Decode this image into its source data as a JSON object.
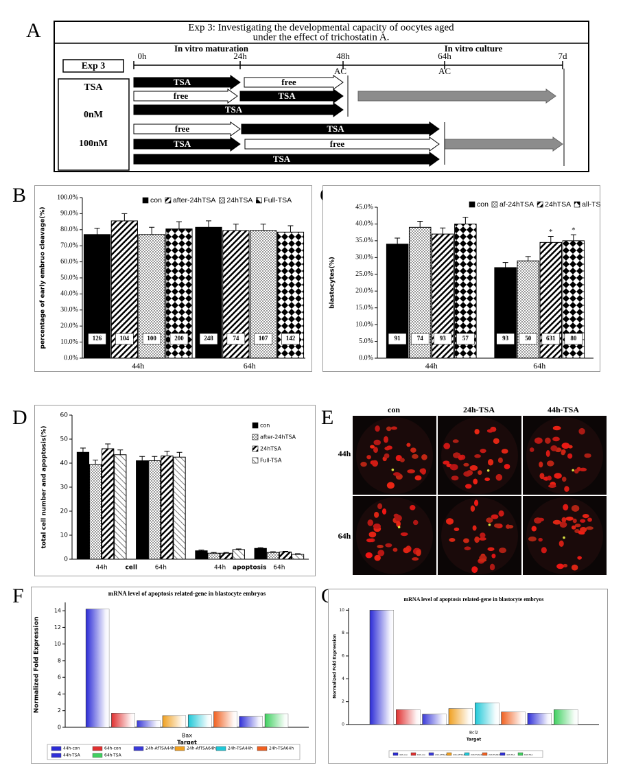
{
  "panel_labels": [
    "A",
    "B",
    "C",
    "D",
    "E",
    "F",
    "G"
  ],
  "diagram": {
    "title_lines": [
      "Exp 3: Investigating the developmental capacity of oocytes aged",
      "under the effect of trichostatin A."
    ],
    "exp_label": "Exp 3",
    "phases": [
      "In vitro maturation",
      "In vitro culture"
    ],
    "timepoints": [
      "0h",
      "24h",
      "48h",
      "64h",
      "7d"
    ],
    "markers": [
      "AC",
      "AC"
    ],
    "groups": [
      "TSA",
      "0nM",
      "100nM"
    ],
    "arrows": [
      {
        "label": "TSA",
        "style": "filled"
      },
      {
        "label": "free",
        "style": "open"
      },
      {
        "label": "free",
        "style": "open"
      },
      {
        "label": "TSA",
        "style": "filled"
      },
      {
        "label": "TSA",
        "style": "filled"
      },
      {
        "label": "free",
        "style": "open"
      },
      {
        "label": "TSA",
        "style": "filled"
      },
      {
        "label": "TSA",
        "style": "filled"
      },
      {
        "label": "free",
        "style": "open"
      },
      {
        "label": "TSA",
        "style": "filled"
      }
    ]
  },
  "images": {
    "columns": [
      "con",
      "24h-TSA",
      "44h-TSA"
    ],
    "rows": [
      "44h",
      "64h"
    ]
  },
  "chart_data": [
    {
      "type": "bar",
      "ylabel": "percentage of early embruo  cleavage(%)",
      "categories": [
        "44h",
        "64h"
      ],
      "ylim": [
        0,
        100
      ],
      "yticks": [
        {
          "value": 0,
          "label": "0.0%"
        },
        {
          "value": 10,
          "label": "10.0%"
        },
        {
          "value": 20,
          "label": "20.0%"
        },
        {
          "value": 30,
          "label": "30.0%"
        },
        {
          "value": 40,
          "label": "40.0%"
        },
        {
          "value": 50,
          "label": "50.0%"
        },
        {
          "value": 60,
          "label": "60.0%"
        },
        {
          "value": 70,
          "label": "70.0%"
        },
        {
          "value": 80,
          "label": "80.0%"
        },
        {
          "value": 90,
          "label": "90.0%"
        },
        {
          "value": 100,
          "label": "100.0%"
        }
      ],
      "legend": "top",
      "series": [
        {
          "name": "con",
          "color": "#000000",
          "pattern": "solid",
          "values": [
            77,
            81.5
          ],
          "errors": [
            4,
            4
          ],
          "sample_sizes": [
            126,
            248
          ]
        },
        {
          "name": "after-24hTSA",
          "color": "#000000",
          "pattern": "hatch",
          "values": [
            85.5,
            79.5
          ],
          "errors": [
            4.5,
            4
          ],
          "sample_sizes": [
            104,
            74
          ]
        },
        {
          "name": "24hTSA",
          "color": "#000000",
          "pattern": "dots",
          "values": [
            77,
            79.5
          ],
          "errors": [
            4.5,
            4
          ],
          "sample_sizes": [
            100,
            107
          ]
        },
        {
          "name": "Full-TSA",
          "color": "#000000",
          "pattern": "diamond",
          "values": [
            80.5,
            78.5
          ],
          "errors": [
            4.5,
            4
          ],
          "sample_sizes": [
            200,
            142
          ]
        }
      ]
    },
    {
      "type": "bar",
      "ylabel": "blastocytes(%)",
      "categories": [
        "44h",
        "64h"
      ],
      "ylim": [
        0,
        45
      ],
      "yticks": [
        {
          "value": 0,
          "label": "0.0%"
        },
        {
          "value": 5,
          "label": "5.0%"
        },
        {
          "value": 10,
          "label": "10.0%"
        },
        {
          "value": 15,
          "label": "15.0%"
        },
        {
          "value": 20,
          "label": "20.0%"
        },
        {
          "value": 25,
          "label": "25.0%"
        },
        {
          "value": 30,
          "label": "30.0%"
        },
        {
          "value": 35,
          "label": "35.0%"
        },
        {
          "value": 40,
          "label": "40.0%"
        },
        {
          "value": 45,
          "label": "45.0%"
        }
      ],
      "legend": "top",
      "series": [
        {
          "name": "con",
          "color": "#000000",
          "pattern": "solid",
          "values": [
            34,
            27
          ],
          "errors": [
            1.8,
            1.5
          ],
          "sample_sizes": [
            91,
            93
          ]
        },
        {
          "name": "af-24hTSA",
          "color": "#000000",
          "pattern": "dots",
          "values": [
            39,
            29
          ],
          "errors": [
            1.8,
            1.3
          ],
          "sample_sizes": [
            74,
            50
          ]
        },
        {
          "name": "24hTSA",
          "color": "#000000",
          "pattern": "hatch",
          "values": [
            37,
            34.5
          ],
          "errors": [
            1.8,
            1.8
          ],
          "sample_sizes": [
            93,
            631
          ],
          "significance": [
            null,
            "*"
          ]
        },
        {
          "name": "all-TSA",
          "color": "#000000",
          "pattern": "diamond",
          "values": [
            40,
            35
          ],
          "errors": [
            2,
            1.8
          ],
          "sample_sizes": [
            57,
            80
          ],
          "significance": [
            null,
            "*"
          ]
        }
      ]
    },
    {
      "type": "bar",
      "ylabel": "total cell number and apoptosis(%)",
      "categories": [
        "44h",
        "64h",
        "44h",
        "64h"
      ],
      "groups": [
        "cell",
        "apoptosis"
      ],
      "ylim": [
        0,
        60
      ],
      "yticks": [
        0,
        10,
        20,
        30,
        40,
        50,
        60
      ],
      "legend": "right",
      "series": [
        {
          "name": "con",
          "color": "#000000",
          "pattern": "solid",
          "values": [
            44.5,
            41,
            3.5,
            4.5
          ],
          "errors": [
            1.8,
            1.8,
            0.3,
            0.3
          ]
        },
        {
          "name": "after-24hTSA",
          "color": "#000000",
          "pattern": "dots",
          "values": [
            39.5,
            41,
            2.5,
            2.8
          ],
          "errors": [
            1.8,
            1.8,
            0.3,
            0.3
          ]
        },
        {
          "name": "24hTSA",
          "color": "#000000",
          "pattern": "hatch",
          "values": [
            46,
            43,
            2.5,
            3
          ],
          "errors": [
            2,
            2,
            0.3,
            0.3
          ]
        },
        {
          "name": "Full-TSA",
          "color": "#000000",
          "pattern": "light",
          "values": [
            43.5,
            42.5,
            4,
            2
          ],
          "errors": [
            2,
            2,
            0.3,
            0.3
          ]
        }
      ]
    },
    {
      "type": "bar",
      "title": "mRNA level of apoptosis related-gene  in blastocyte embryos",
      "xlabel": "Target",
      "ylabel": "Normalized Fold Expression",
      "categories": [
        "Bax"
      ],
      "ylim": [
        0,
        15
      ],
      "yticks": [
        0,
        2,
        4,
        6,
        8,
        10,
        12,
        14
      ],
      "legend": "bottom",
      "series": [
        {
          "name": "44h-con",
          "color": "#2b2bd6",
          "values": [
            14.2
          ]
        },
        {
          "name": "64h-con",
          "color": "#e03030",
          "values": [
            1.7
          ]
        },
        {
          "name": "24h-AfTSA44h",
          "color": "#3a3ad8",
          "values": [
            0.8
          ]
        },
        {
          "name": "24h-AfTSA64h",
          "color": "#f0a020",
          "values": [
            1.4
          ]
        },
        {
          "name": "24h-TSA44h",
          "color": "#20c8d8",
          "values": [
            1.5
          ]
        },
        {
          "name": "24h-TSA64h",
          "color": "#f06020",
          "values": [
            1.9
          ]
        },
        {
          "name": "44h-TSA",
          "color": "#3030d8",
          "values": [
            1.3
          ]
        },
        {
          "name": "64h-TSA",
          "color": "#40d060",
          "values": [
            1.6
          ]
        }
      ]
    },
    {
      "type": "bar",
      "title": "mRNA level of apoptosis related-gene  in blastocyte embryos",
      "xlabel": "Target",
      "ylabel": "Normalized Fold Expression",
      "categories": [
        "Bcl2"
      ],
      "ylim": [
        0,
        10.2
      ],
      "yticks": [
        0,
        2,
        4,
        6,
        8,
        10
      ],
      "legend": "bottom",
      "series": [
        {
          "name": "44h-con",
          "color": "#2b2bd6",
          "values": [
            10
          ]
        },
        {
          "name": "64h-con",
          "color": "#e03030",
          "values": [
            1.3
          ]
        },
        {
          "name": "24h-AfTSA44h",
          "color": "#3a3ad8",
          "values": [
            0.9
          ]
        },
        {
          "name": "24h-AfTSA64h",
          "color": "#f0a020",
          "values": [
            1.4
          ]
        },
        {
          "name": "24h-TSA44h",
          "color": "#20c8d8",
          "values": [
            1.9
          ]
        },
        {
          "name": "24h-TSA64h",
          "color": "#f06020",
          "values": [
            1.1
          ]
        },
        {
          "name": "44h-TSA",
          "color": "#3030d8",
          "values": [
            1.0
          ]
        },
        {
          "name": "64h-TSA",
          "color": "#40d060",
          "values": [
            1.3
          ]
        }
      ]
    }
  ]
}
